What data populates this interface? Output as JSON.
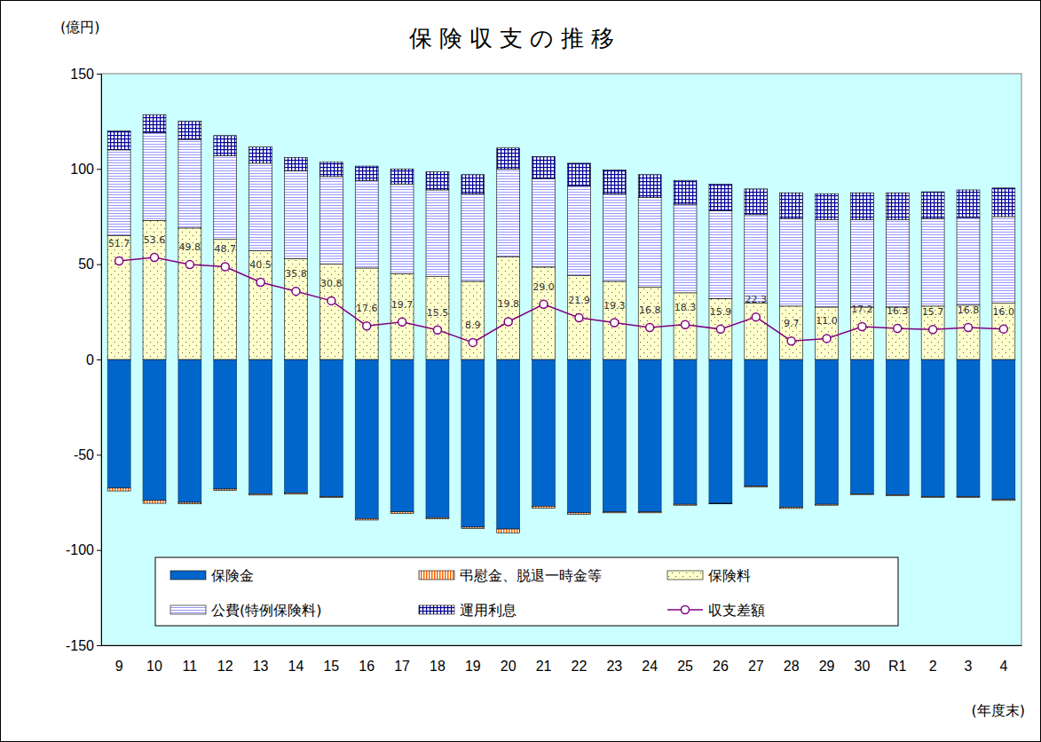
{
  "chart_data": {
    "type": "bar",
    "title": "保険収支の推移",
    "y_label": "(億円)",
    "x_label": "(年度末)",
    "stacked": true,
    "grid": false,
    "legend": "bottom",
    "categories": [
      "9",
      "10",
      "11",
      "12",
      "13",
      "14",
      "15",
      "16",
      "17",
      "18",
      "19",
      "20",
      "21",
      "22",
      "23",
      "24",
      "25",
      "26",
      "27",
      "28",
      "29",
      "30",
      "R1",
      "2",
      "3",
      "4"
    ],
    "ylim": [
      -150,
      150
    ],
    "yticks": [
      -150,
      -100,
      -50,
      0,
      50,
      100,
      150
    ],
    "series": [
      {
        "name": "保険金",
        "type": "bar",
        "color": "#0066cc",
        "values": [
          -67.5,
          -74,
          -75,
          -68,
          -70.5,
          -70,
          -72,
          -83.5,
          -80,
          -83,
          -88,
          -89,
          -77,
          -80.5,
          -80,
          -80,
          -76,
          -75.5,
          -66.5,
          -77.5,
          -76,
          -70.5,
          -71,
          -72,
          -72,
          -73.5
        ]
      },
      {
        "name": "弔慰金、脱退一時金等",
        "type": "bar",
        "color": "#ff6600",
        "values": [
          -1.5,
          -1.5,
          -0.8,
          -0.7,
          -0.7,
          -0.7,
          -0.5,
          -0.8,
          -0.8,
          -0.7,
          -0.7,
          -2,
          -1,
          -0.7,
          -0.5,
          -0.5,
          -0.5,
          -0.3,
          -0.5,
          -0.7,
          -0.5,
          -0.4,
          -0.5,
          -0.4,
          -0.5,
          -0.5
        ]
      },
      {
        "name": "保険料",
        "type": "bar",
        "color": "#ffffcc",
        "values": [
          65,
          73,
          69,
          63,
          57,
          53,
          50,
          48,
          45,
          43.5,
          41,
          54,
          48.5,
          44,
          41,
          38,
          35,
          32,
          29.5,
          28,
          27.5,
          27.5,
          27.5,
          28,
          28.5,
          29.5
        ]
      },
      {
        "name": "公費(特例保険料)",
        "type": "bar",
        "color": "#9999ff",
        "values": [
          45,
          46,
          46.5,
          44,
          46,
          46,
          46,
          46,
          47,
          45.5,
          46,
          46,
          46.5,
          47,
          46,
          47,
          46.5,
          46,
          46.5,
          46,
          46,
          46,
          46,
          46,
          46,
          45.5
        ]
      },
      {
        "name": "運用利息",
        "type": "bar",
        "color": "#000099",
        "values": [
          10,
          9.5,
          9.5,
          10.5,
          8.5,
          7,
          7.5,
          7.5,
          8,
          9.5,
          10,
          11,
          11.5,
          12,
          12.5,
          12,
          12.5,
          14,
          13.5,
          13.5,
          13.5,
          14,
          14,
          14,
          14.5,
          15
        ]
      },
      {
        "name": "収支差額",
        "type": "line",
        "color": "#800080",
        "marker": "circle",
        "data_labels": true,
        "values": [
          51.7,
          53.6,
          49.8,
          48.7,
          40.5,
          35.8,
          30.8,
          17.6,
          19.7,
          15.5,
          8.9,
          19.8,
          29,
          21.9,
          19.3,
          16.8,
          18.3,
          15.9,
          22.3,
          9.7,
          11,
          17.2,
          16.3,
          15.7,
          16.8,
          16
        ],
        "value_labels": [
          "51.7",
          "53.6",
          "49.8",
          "48.7",
          "40.5",
          "35.8",
          "30.8",
          "17.6",
          "19.7",
          "15.5",
          "8.9",
          "19.8",
          "29.0",
          "21.9",
          "19.3",
          "16.8",
          "18.3",
          "15.9",
          "22.3",
          "9.7",
          "11.0",
          "17.2",
          "16.3",
          "15.7",
          "16.8",
          "16.0"
        ]
      }
    ]
  }
}
